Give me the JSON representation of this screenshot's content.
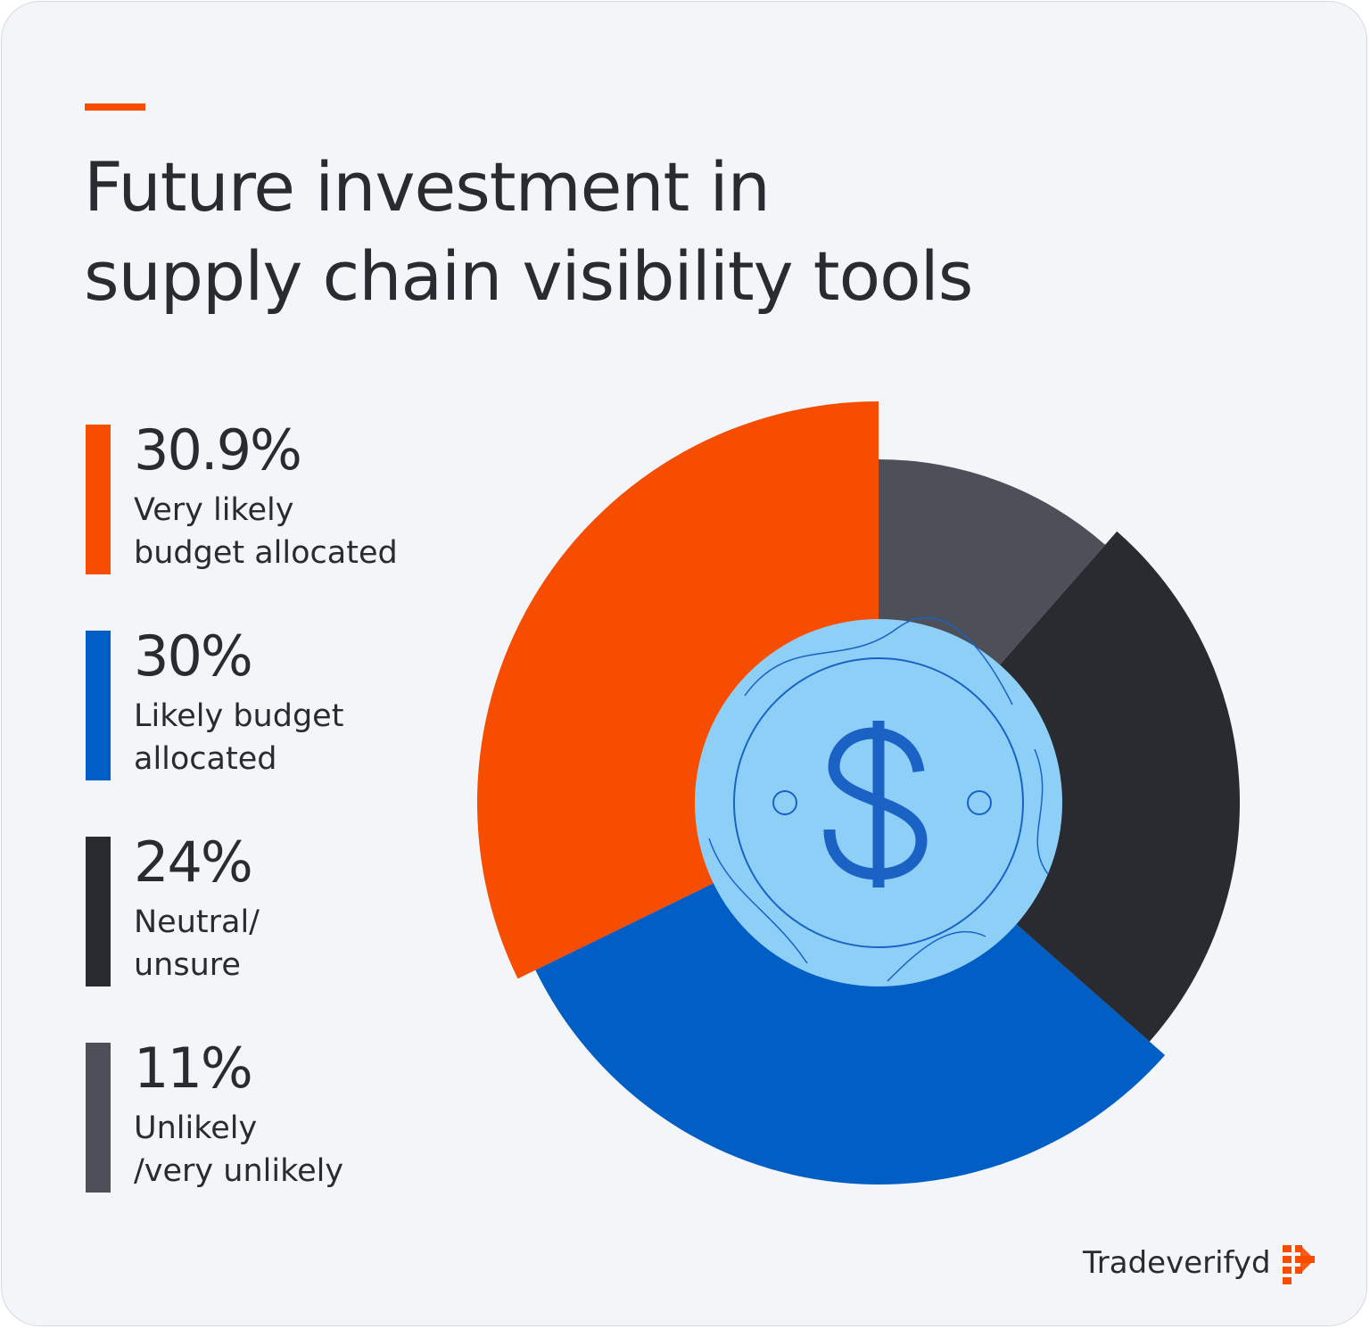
{
  "chart_data": {
    "type": "pie",
    "title": "Future investment in\nsupply chain visibility tools",
    "categories": [
      "Very likely\nbudget allocated",
      "Likely budget\nallocated",
      "Neutral/\nunsure",
      "Unlikely\n/very unlikely"
    ],
    "values": [
      30.9,
      30,
      24,
      11
    ],
    "value_labels": [
      "30.9%",
      "30%",
      "24%",
      "11%"
    ],
    "colors": [
      "#f64d00",
      "#005ec4",
      "#2a2b30",
      "#4d5058"
    ]
  },
  "brand": "Tradeverifyd"
}
